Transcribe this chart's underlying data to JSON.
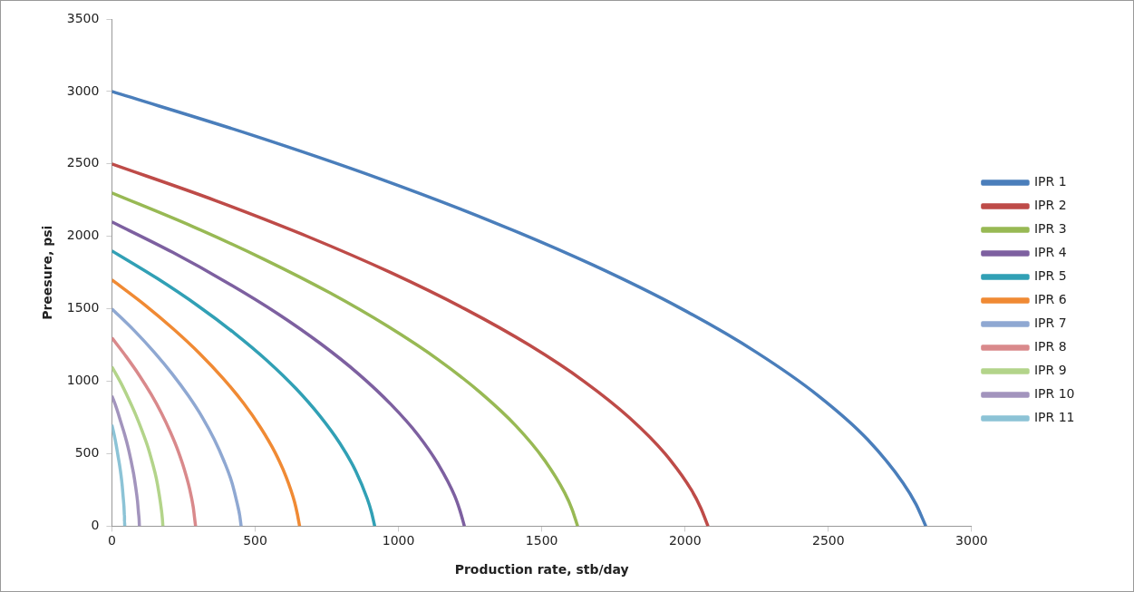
{
  "chart_data": {
    "type": "line",
    "xlabel": "Production rate, stb/day",
    "ylabel": "Preesure, psi",
    "xlim": [
      0,
      3000
    ],
    "xticks": [
      0,
      500,
      1000,
      1500,
      2000,
      2500,
      3000
    ],
    "ylim": [
      0,
      3500
    ],
    "yticks": [
      0,
      500,
      1000,
      1500,
      2000,
      2500,
      3000,
      3500
    ],
    "grid": false,
    "legend": "right",
    "marker": "none",
    "line_style": "solid",
    "series": [
      {
        "name": "IPR 1",
        "color": "#4a7ebb",
        "x": [
          0,
          488,
          932,
          1329,
          1681,
          1988,
          2249,
          2465,
          2636,
          2760,
          2806,
          2840
        ],
        "values": [
          3000,
          2700,
          2400,
          2100,
          1800,
          1500,
          1200,
          900,
          600,
          300,
          150,
          0
        ]
      },
      {
        "name": "IPR 2",
        "color": "#be4b48",
        "x": [
          0,
          358,
          682,
          973,
          1231,
          1456,
          1647,
          1805,
          1930,
          2022,
          2055,
          2080
        ],
        "values": [
          2500,
          2250,
          2000,
          1750,
          1500,
          1250,
          1000,
          750,
          500,
          250,
          125,
          0
        ]
      },
      {
        "name": "IPR 3",
        "color": "#98b954",
        "x": [
          0,
          280,
          533,
          761,
          962,
          1138,
          1287,
          1411,
          1508,
          1580,
          1606,
          1625
        ],
        "values": [
          2300,
          2070,
          1840,
          1610,
          1380,
          1150,
          920,
          690,
          460,
          230,
          115,
          0
        ]
      },
      {
        "name": "IPR 4",
        "color": "#7d60a0",
        "x": [
          0,
          212,
          403,
          576,
          728,
          861,
          974,
          1068,
          1141,
          1196,
          1215,
          1230
        ],
        "values": [
          2100,
          1890,
          1680,
          1470,
          1260,
          1050,
          840,
          630,
          420,
          210,
          105,
          0
        ]
      },
      {
        "name": "IPR 5",
        "color": "#31a0b5",
        "x": [
          0,
          158,
          301,
          429,
          543,
          642,
          726,
          796,
          851,
          891,
          906,
          917
        ],
        "values": [
          1900,
          1710,
          1520,
          1330,
          1140,
          950,
          760,
          570,
          380,
          190,
          95,
          0
        ]
      },
      {
        "name": "IPR 6",
        "color": "#f08a34",
        "x": [
          0,
          113,
          215,
          307,
          388,
          459,
          519,
          569,
          608,
          637,
          647,
          655
        ],
        "values": [
          1700,
          1530,
          1360,
          1190,
          1020,
          850,
          680,
          510,
          340,
          170,
          85,
          0
        ]
      },
      {
        "name": "IPR 7",
        "color": "#8fa8d2",
        "x": [
          0,
          78,
          148,
          211,
          267,
          316,
          357,
          391,
          419,
          438,
          446,
          451
        ],
        "values": [
          1500,
          1350,
          1200,
          1050,
          900,
          750,
          600,
          450,
          300,
          150,
          75,
          0
        ]
      },
      {
        "name": "IPR 8",
        "color": "#d9898b",
        "x": [
          0,
          50,
          96,
          137,
          173,
          204,
          231,
          253,
          271,
          284,
          288,
          292
        ],
        "values": [
          1300,
          1170,
          1040,
          910,
          780,
          650,
          520,
          390,
          260,
          130,
          65,
          0
        ]
      },
      {
        "name": "IPR 9",
        "color": "#b3d48a",
        "x": [
          0,
          31,
          58,
          83,
          105,
          125,
          141,
          155,
          165,
          173,
          176,
          178
        ],
        "values": [
          1100,
          990,
          880,
          770,
          660,
          550,
          440,
          330,
          220,
          110,
          55,
          0
        ]
      },
      {
        "name": "IPR 10",
        "color": "#a294bd",
        "x": [
          0,
          17,
          31,
          45,
          57,
          67,
          76,
          83,
          89,
          93,
          95,
          96
        ],
        "values": [
          900,
          810,
          720,
          630,
          540,
          450,
          360,
          270,
          180,
          90,
          45,
          0
        ]
      },
      {
        "name": "IPR 11",
        "color": "#8cc3d6",
        "x": [
          0,
          8,
          15,
          21,
          27,
          32,
          36,
          39,
          42,
          44,
          44,
          45
        ],
        "values": [
          700,
          630,
          560,
          490,
          420,
          350,
          280,
          210,
          140,
          70,
          35,
          0
        ]
      }
    ]
  }
}
